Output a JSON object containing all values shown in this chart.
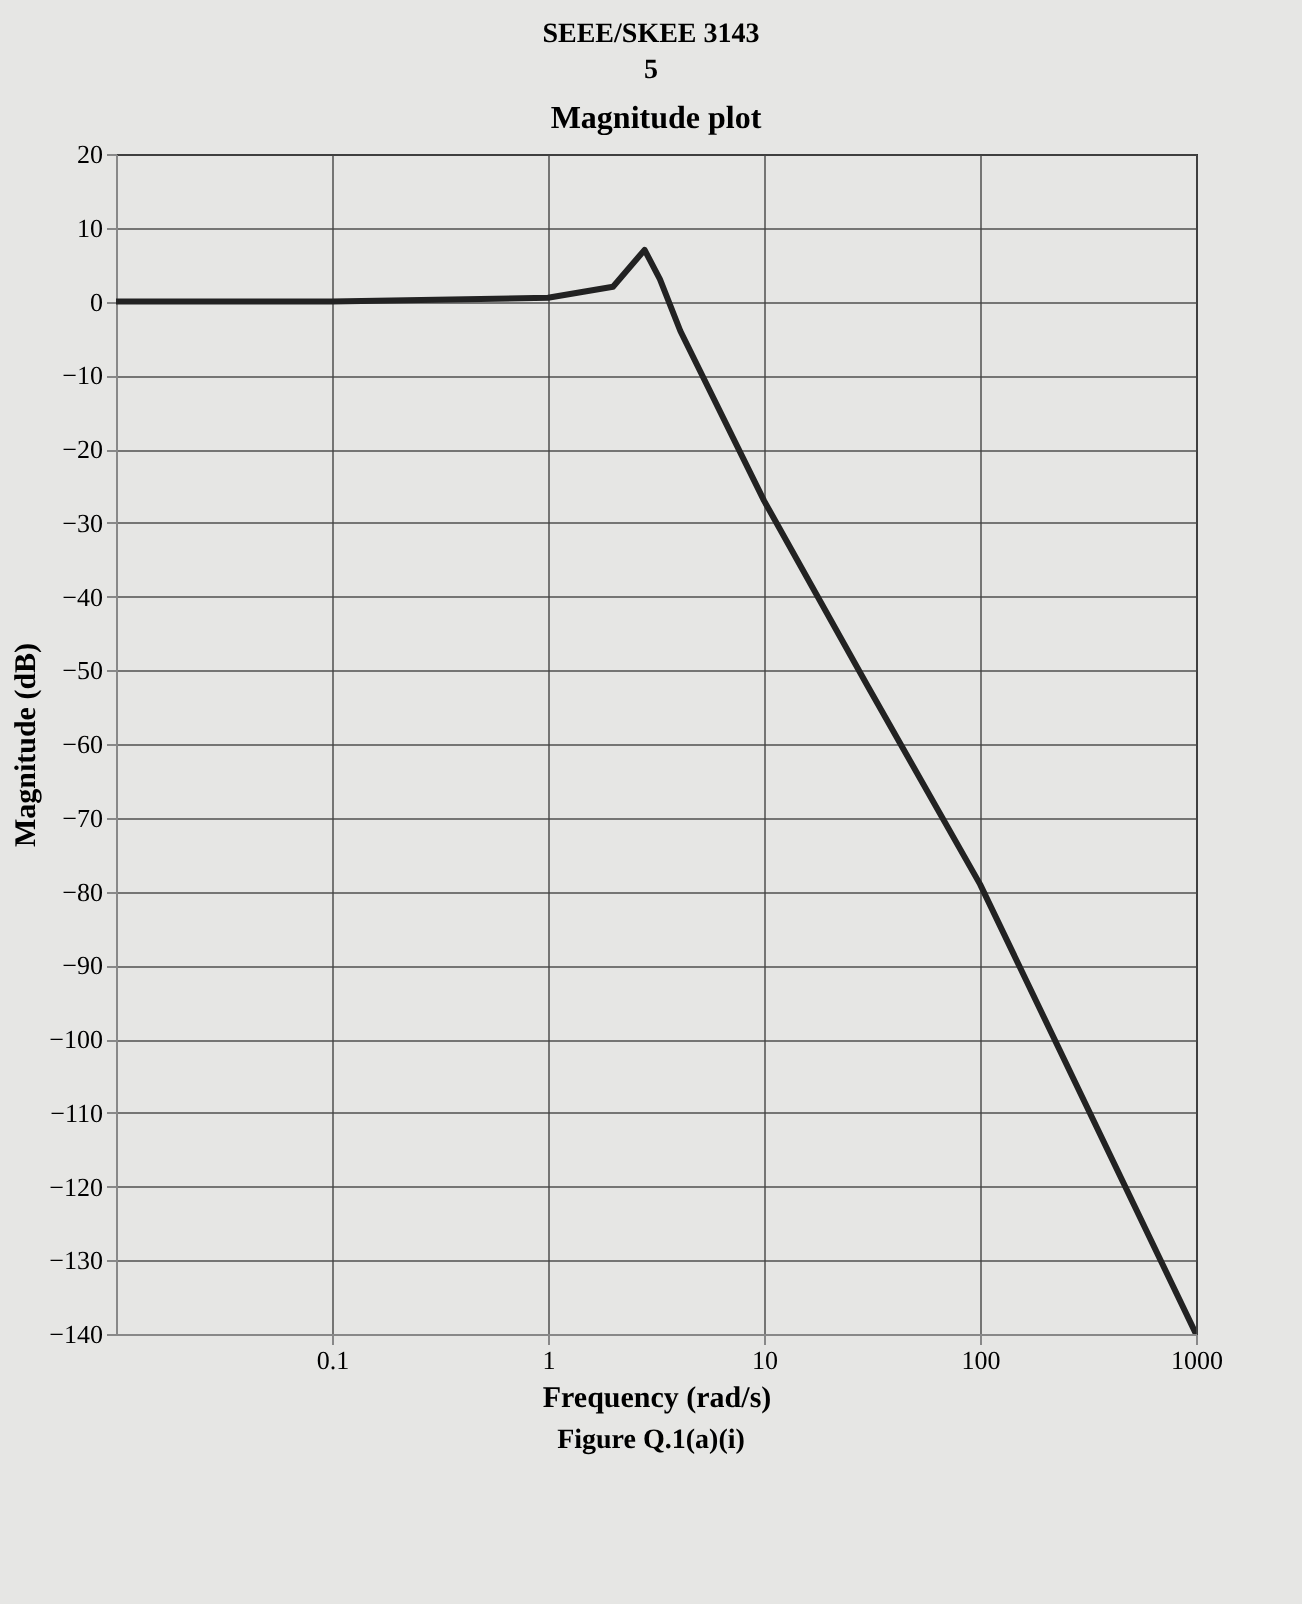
{
  "chart_data": {
    "type": "line",
    "title": "Magnitude plot",
    "xlabel": "Frequency (rad/s)",
    "ylabel": "Magnitude (dB)",
    "annotations": [
      "SEEE/SKEE 3143",
      "5",
      "Figure Q.1(a)(i)"
    ],
    "x": [
      0.01,
      0.1,
      1,
      2,
      2.8,
      3.3,
      4.1,
      10,
      30,
      100,
      1000
    ],
    "series": [
      {
        "color": "#222222",
        "values": [
          0,
          0,
          0.5,
          2,
          7,
          3,
          -4,
          -27,
          -52,
          -79,
          -140
        ]
      }
    ],
    "log": "x",
    "xlim": [
      0.01,
      1000
    ],
    "xticks": [
      0.1,
      1,
      10,
      100,
      1000
    ],
    "ylim": [
      -140,
      20
    ],
    "yticks": [
      20,
      10,
      0,
      -10,
      -20,
      -30,
      -40,
      -50,
      -60,
      -70,
      -80,
      -90,
      -100,
      -110,
      -120,
      -130,
      -140
    ],
    "grid": true,
    "marker": "none",
    "line_style": "solid"
  }
}
